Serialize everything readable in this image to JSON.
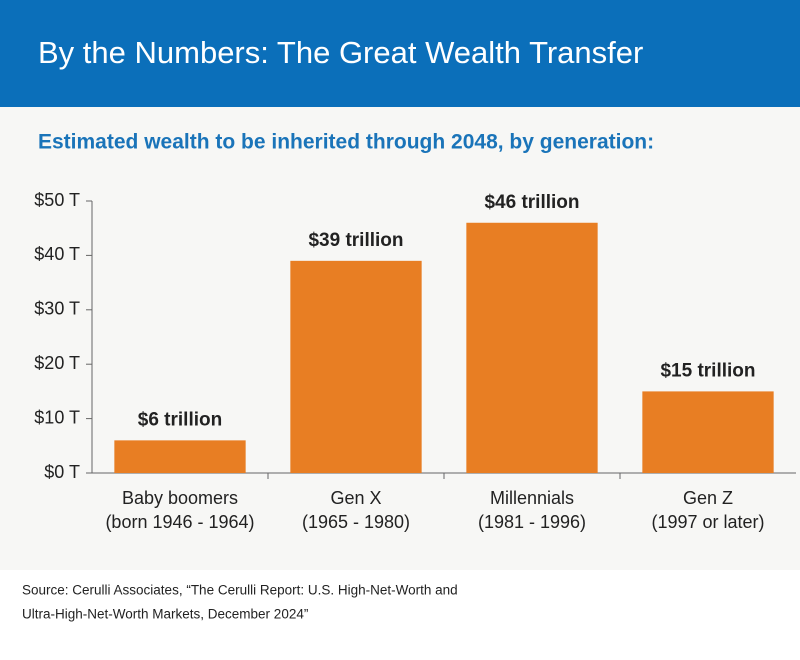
{
  "chart_data": {
    "type": "bar",
    "title": "By the Numbers: The Great Wealth Transfer",
    "subtitle": "Estimated wealth to be inherited through 2048, by generation:",
    "categories": [
      [
        "Baby boomers",
        "(born 1946 - 1964)"
      ],
      [
        "Gen X",
        "(1965 - 1980)"
      ],
      [
        "Millennials",
        "(1981 - 1996)"
      ],
      [
        "Gen Z",
        "(1997 or later)"
      ]
    ],
    "values": [
      6,
      39,
      46,
      15
    ],
    "value_labels": [
      "$6 trillion",
      "$39 trillion",
      "$46 trillion",
      "$15 trillion"
    ],
    "color": "#e87e23",
    "ylim": [
      0,
      50
    ],
    "yticks": [
      {
        "value": 0,
        "label": "$0 T"
      },
      {
        "value": 10,
        "label": "$10 T"
      },
      {
        "value": 20,
        "label": "$20 T"
      },
      {
        "value": 30,
        "label": "$30 T"
      },
      {
        "value": 40,
        "label": "$40 T"
      },
      {
        "value": 50,
        "label": "$50 T"
      }
    ],
    "grid": false,
    "source": [
      "Source: Cerulli Associates, “The Cerulli Report: U.S. High-Net-Worth and",
      "Ultra-High-Net-Worth Markets, December 2024”"
    ]
  }
}
